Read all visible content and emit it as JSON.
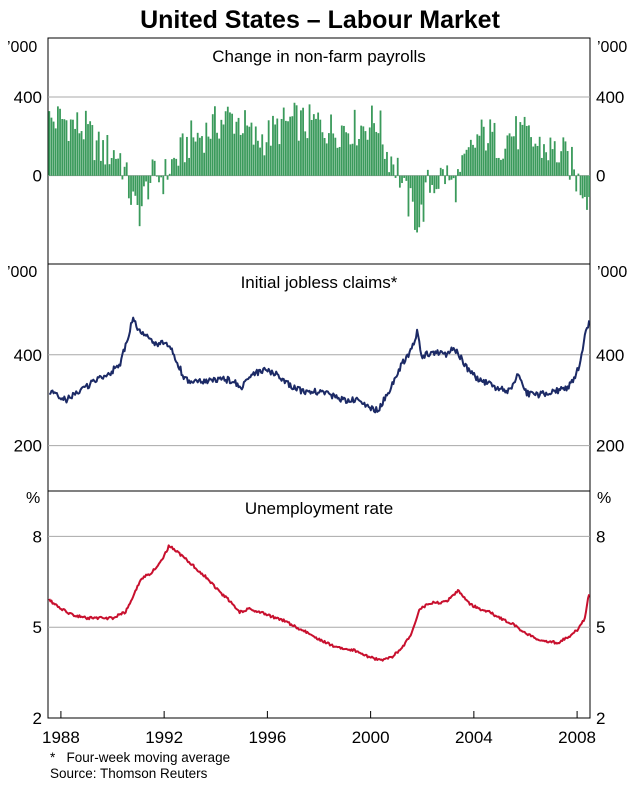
{
  "chart_data": {
    "type": "combo",
    "title": "United States – Labour Market",
    "x_range": [
      1987.5,
      2008.5
    ],
    "x_ticks": [
      "1988",
      "1992",
      "1996",
      "2000",
      "2004",
      "2008"
    ],
    "panels": [
      {
        "id": "payrolls",
        "type": "bar",
        "title": "Change in non-farm payrolls",
        "units": "’000",
        "ylim": [
          -450,
          700
        ],
        "yticks": [
          "400",
          "0"
        ],
        "ytick_values": [
          400,
          0
        ],
        "color": "#3a9a5b",
        "series_anchors": [
          [
            1987.55,
            280
          ],
          [
            1988.0,
            290
          ],
          [
            1988.5,
            260
          ],
          [
            1989.0,
            230
          ],
          [
            1989.5,
            130
          ],
          [
            1990.0,
            120
          ],
          [
            1990.3,
            100
          ],
          [
            1990.6,
            -50
          ],
          [
            1990.9,
            -180
          ],
          [
            1991.1,
            -170
          ],
          [
            1991.4,
            -30
          ],
          [
            1991.7,
            0
          ],
          [
            1992.0,
            -10
          ],
          [
            1992.3,
            60
          ],
          [
            1992.6,
            100
          ],
          [
            1993.0,
            180
          ],
          [
            1993.5,
            210
          ],
          [
            1994.0,
            260
          ],
          [
            1994.5,
            300
          ],
          [
            1995.0,
            270
          ],
          [
            1995.5,
            180
          ],
          [
            1996.0,
            200
          ],
          [
            1996.5,
            250
          ],
          [
            1997.0,
            280
          ],
          [
            1997.5,
            260
          ],
          [
            1998.0,
            270
          ],
          [
            1998.5,
            230
          ],
          [
            1999.0,
            250
          ],
          [
            1999.5,
            240
          ],
          [
            2000.0,
            270
          ],
          [
            2000.3,
            280
          ],
          [
            2000.6,
            120
          ],
          [
            2000.9,
            80
          ],
          [
            2001.1,
            20
          ],
          [
            2001.3,
            -90
          ],
          [
            2001.6,
            -170
          ],
          [
            2001.9,
            -250
          ],
          [
            2002.2,
            -60
          ],
          [
            2002.6,
            -20
          ],
          [
            2002.9,
            10
          ],
          [
            2003.2,
            -60
          ],
          [
            2003.5,
            0
          ],
          [
            2003.8,
            100
          ],
          [
            2004.2,
            200
          ],
          [
            2004.6,
            210
          ],
          [
            2005.0,
            160
          ],
          [
            2005.5,
            220
          ],
          [
            2006.0,
            200
          ],
          [
            2006.5,
            150
          ],
          [
            2007.0,
            130
          ],
          [
            2007.5,
            100
          ],
          [
            2007.8,
            50
          ],
          [
            2008.0,
            -30
          ],
          [
            2008.3,
            -60
          ],
          [
            2008.45,
            -110
          ]
        ]
      },
      {
        "id": "claims",
        "type": "line",
        "title": "Initial jobless claims*",
        "units": "’000",
        "ylim": [
          100,
          600
        ],
        "yticks": [
          "400",
          "200"
        ],
        "ytick_values": [
          400,
          200
        ],
        "color": "#1c2a66",
        "series_anchors": [
          [
            1987.55,
            320
          ],
          [
            1987.8,
            310
          ],
          [
            1988.2,
            300
          ],
          [
            1988.6,
            315
          ],
          [
            1989.0,
            330
          ],
          [
            1989.5,
            350
          ],
          [
            1989.9,
            360
          ],
          [
            1990.3,
            380
          ],
          [
            1990.6,
            440
          ],
          [
            1990.8,
            480
          ],
          [
            1991.0,
            455
          ],
          [
            1991.3,
            440
          ],
          [
            1991.6,
            425
          ],
          [
            1991.9,
            425
          ],
          [
            1992.2,
            420
          ],
          [
            1992.5,
            385
          ],
          [
            1992.8,
            345
          ],
          [
            1993.2,
            340
          ],
          [
            1993.6,
            340
          ],
          [
            1994.0,
            345
          ],
          [
            1994.5,
            345
          ],
          [
            1995.0,
            330
          ],
          [
            1995.5,
            360
          ],
          [
            1995.9,
            365
          ],
          [
            1996.3,
            360
          ],
          [
            1996.7,
            340
          ],
          [
            1997.0,
            330
          ],
          [
            1997.5,
            315
          ],
          [
            1998.0,
            320
          ],
          [
            1998.5,
            310
          ],
          [
            1999.0,
            300
          ],
          [
            1999.5,
            300
          ],
          [
            2000.0,
            280
          ],
          [
            2000.3,
            280
          ],
          [
            2000.6,
            310
          ],
          [
            2000.9,
            340
          ],
          [
            2001.2,
            380
          ],
          [
            2001.5,
            400
          ],
          [
            2001.8,
            450
          ],
          [
            2002.0,
            395
          ],
          [
            2002.3,
            405
          ],
          [
            2002.6,
            405
          ],
          [
            2002.9,
            400
          ],
          [
            2003.2,
            415
          ],
          [
            2003.5,
            395
          ],
          [
            2003.8,
            365
          ],
          [
            2004.2,
            345
          ],
          [
            2004.6,
            335
          ],
          [
            2005.0,
            325
          ],
          [
            2005.4,
            320
          ],
          [
            2005.75,
            360
          ],
          [
            2005.95,
            320
          ],
          [
            2006.3,
            310
          ],
          [
            2006.8,
            315
          ],
          [
            2007.2,
            320
          ],
          [
            2007.6,
            325
          ],
          [
            2007.9,
            345
          ],
          [
            2008.1,
            380
          ],
          [
            2008.3,
            440
          ],
          [
            2008.45,
            470
          ]
        ]
      },
      {
        "id": "unemployment",
        "type": "line",
        "title": "Unemployment rate",
        "units": "%",
        "ylim": [
          2,
          9.5
        ],
        "yticks": [
          "8",
          "5",
          "2"
        ],
        "ytick_values": [
          8,
          5,
          2
        ],
        "color": "#c8102e",
        "series_anchors": [
          [
            1987.55,
            5.9
          ],
          [
            1988.0,
            5.6
          ],
          [
            1988.5,
            5.4
          ],
          [
            1989.0,
            5.3
          ],
          [
            1989.5,
            5.3
          ],
          [
            1990.0,
            5.3
          ],
          [
            1990.5,
            5.5
          ],
          [
            1990.8,
            6.0
          ],
          [
            1991.1,
            6.6
          ],
          [
            1991.5,
            6.8
          ],
          [
            1991.9,
            7.2
          ],
          [
            1992.2,
            7.7
          ],
          [
            1992.5,
            7.5
          ],
          [
            1992.9,
            7.2
          ],
          [
            1993.3,
            6.9
          ],
          [
            1993.7,
            6.6
          ],
          [
            1994.1,
            6.2
          ],
          [
            1994.5,
            5.9
          ],
          [
            1994.9,
            5.5
          ],
          [
            1995.3,
            5.6
          ],
          [
            1995.8,
            5.5
          ],
          [
            1996.3,
            5.3
          ],
          [
            1996.7,
            5.2
          ],
          [
            1997.1,
            5.0
          ],
          [
            1997.6,
            4.8
          ],
          [
            1998.0,
            4.6
          ],
          [
            1998.5,
            4.4
          ],
          [
            1999.0,
            4.3
          ],
          [
            1999.5,
            4.2
          ],
          [
            2000.0,
            4.0
          ],
          [
            2000.4,
            3.9
          ],
          [
            2000.8,
            4.0
          ],
          [
            2001.2,
            4.3
          ],
          [
            2001.6,
            4.8
          ],
          [
            2001.9,
            5.6
          ],
          [
            2002.3,
            5.8
          ],
          [
            2002.7,
            5.8
          ],
          [
            2003.0,
            5.9
          ],
          [
            2003.4,
            6.2
          ],
          [
            2003.8,
            5.8
          ],
          [
            2004.2,
            5.6
          ],
          [
            2004.6,
            5.5
          ],
          [
            2005.0,
            5.3
          ],
          [
            2005.5,
            5.1
          ],
          [
            2006.0,
            4.8
          ],
          [
            2006.5,
            4.6
          ],
          [
            2006.9,
            4.5
          ],
          [
            2007.3,
            4.5
          ],
          [
            2007.7,
            4.7
          ],
          [
            2008.0,
            4.9
          ],
          [
            2008.3,
            5.3
          ],
          [
            2008.45,
            6.1
          ]
        ]
      }
    ],
    "footnote": "*   Four-week moving average",
    "source": "Source: Thomson Reuters"
  }
}
